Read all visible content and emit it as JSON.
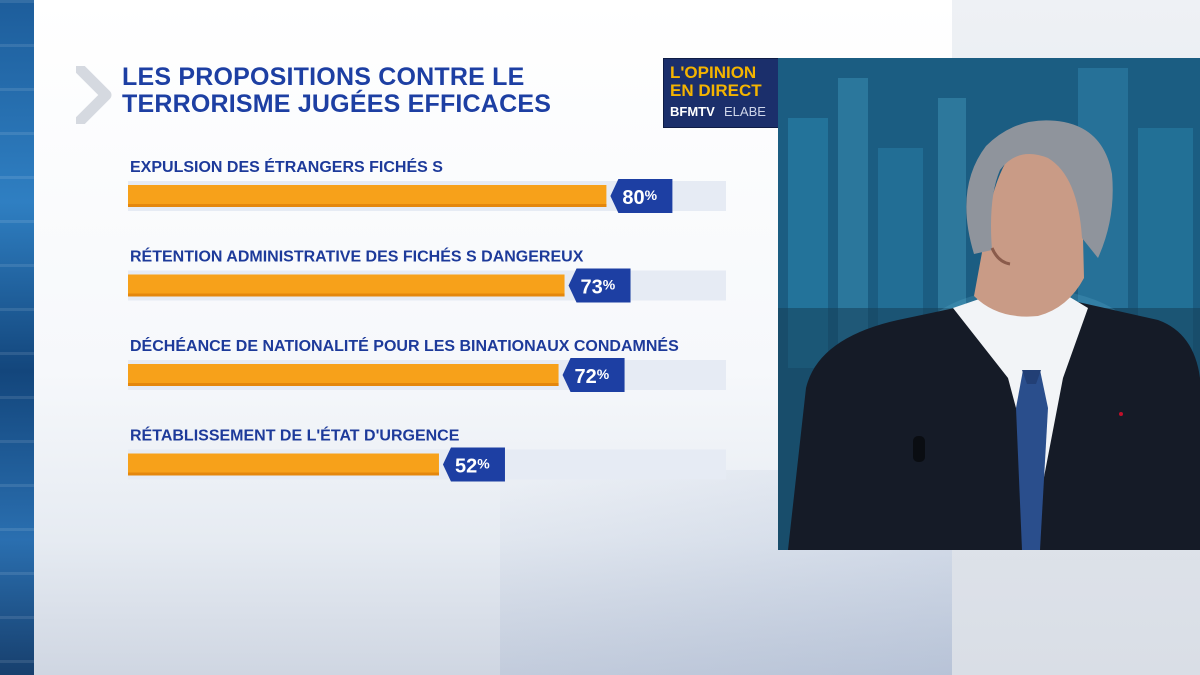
{
  "title": "LES PROPOSITIONS CONTRE LE\nTERRORISME JUGÉES EFFICACES",
  "logo": {
    "line1": "L'OPINION",
    "line2": "EN DIRECT",
    "brand": "BFMTV",
    "partner": "ELABE"
  },
  "colors": {
    "bar_fill": "#f7a11a",
    "bar_track": "#e6ebf4",
    "label_bg": "#1d3fa3",
    "title": "#1d3fa3"
  },
  "chart_data": {
    "type": "bar",
    "orientation": "horizontal",
    "title": "LES PROPOSITIONS CONTRE LE TERRORISME JUGÉES EFFICACES",
    "categories": [
      "EXPULSION DES ÉTRANGERS FICHÉS S",
      "RÉTENTION ADMINISTRATIVE DES FICHÉS S DANGEREUX",
      "DÉCHÉANCE DE NATIONALITÉ POUR LES BINATIONAUX CONDAMNÉS",
      "RÉTABLISSEMENT DE L'ÉTAT D'URGENCE"
    ],
    "values": [
      80,
      73,
      72,
      52
    ],
    "value_labels": [
      "80",
      "73",
      "72",
      "52"
    ],
    "unit": "%",
    "xlim": [
      0,
      100
    ],
    "grid": false,
    "legend": "none"
  }
}
